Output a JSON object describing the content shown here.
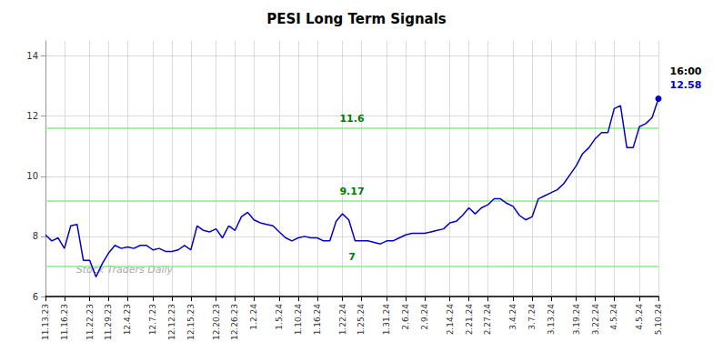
{
  "chart_data": {
    "type": "line",
    "title": "PESI Long Term Signals",
    "color": "#0000cc",
    "ylim": [
      6.0,
      14.5
    ],
    "yticks": [
      6,
      8,
      10,
      12,
      14
    ],
    "grid": true,
    "hlines": [
      {
        "value": 7.0,
        "label": "7",
        "color": "#88ee88"
      },
      {
        "value": 9.17,
        "label": "9.17",
        "color": "#88ee88"
      },
      {
        "value": 11.6,
        "label": "11.6",
        "color": "#88ee88"
      }
    ],
    "last_point_labels": [
      "16:00",
      "12.58"
    ],
    "watermark": "Stock Traders Daily",
    "categories": [
      "11.13.23",
      null,
      null,
      "11.16.23",
      null,
      null,
      null,
      "11.22.23",
      null,
      null,
      "11.29.23",
      null,
      null,
      "12.4.23",
      null,
      null,
      null,
      "12.7.23",
      null,
      null,
      "12.12.23",
      null,
      null,
      "12.15.23",
      null,
      null,
      null,
      "12.20.23",
      null,
      null,
      "12.26.23",
      null,
      null,
      "1.2.24",
      null,
      null,
      null,
      "1.5.24",
      null,
      null,
      "1.10.24",
      null,
      null,
      "1.16.24",
      null,
      null,
      null,
      "1.22.24",
      null,
      null,
      "1.25.24",
      null,
      null,
      null,
      "1.31.24",
      null,
      null,
      "2.6.24",
      null,
      null,
      "2.9.24",
      null,
      null,
      null,
      "2.14.24",
      null,
      null,
      "2.21.24",
      null,
      null,
      "2.27.24",
      null,
      null,
      null,
      "3.4.24",
      null,
      null,
      "3.7.24",
      null,
      null,
      "3.13.24",
      null,
      null,
      null,
      "3.19.24",
      null,
      null,
      "3.22.24",
      null,
      null,
      "4.5.24",
      null,
      null,
      null,
      "4.5.24",
      null,
      null,
      "5.10.24"
    ],
    "values": [
      8.05,
      7.85,
      7.95,
      7.6,
      8.35,
      8.4,
      7.2,
      7.2,
      6.65,
      7.1,
      7.45,
      7.7,
      7.6,
      7.65,
      7.6,
      7.7,
      7.7,
      7.55,
      7.6,
      7.5,
      7.5,
      7.55,
      7.7,
      7.55,
      8.35,
      8.2,
      8.15,
      8.25,
      7.95,
      8.35,
      8.2,
      8.65,
      8.8,
      8.55,
      8.45,
      8.4,
      8.35,
      8.15,
      7.95,
      7.85,
      7.95,
      8.0,
      7.95,
      7.95,
      7.85,
      7.85,
      8.5,
      8.75,
      8.55,
      7.85,
      7.85,
      7.85,
      7.8,
      7.75,
      7.85,
      7.85,
      7.95,
      8.05,
      8.1,
      8.1,
      8.1,
      8.15,
      8.2,
      8.25,
      8.45,
      8.5,
      8.7,
      8.95,
      8.75,
      8.95,
      9.05,
      9.25,
      9.25,
      9.1,
      9.0,
      8.7,
      8.55,
      8.65,
      9.25,
      9.35,
      9.45,
      9.55,
      9.75,
      10.05,
      10.35,
      10.75,
      10.95,
      11.25,
      11.45,
      11.45,
      12.25,
      12.35,
      10.95,
      10.95,
      11.65,
      11.75,
      11.95,
      12.58
    ]
  }
}
